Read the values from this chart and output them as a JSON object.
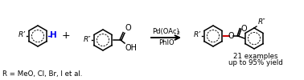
{
  "bg_color": "#ffffff",
  "text_color": "#000000",
  "blue_color": "#0000ee",
  "red_color": "#cc0000",
  "arrow_color": "#000000",
  "footnote": "R = MeO, Cl, Br, I et al.",
  "examples_line1": "21 examples",
  "examples_line2": "up to 95% yield",
  "fig_width": 3.78,
  "fig_height": 1.0,
  "dpi": 100
}
